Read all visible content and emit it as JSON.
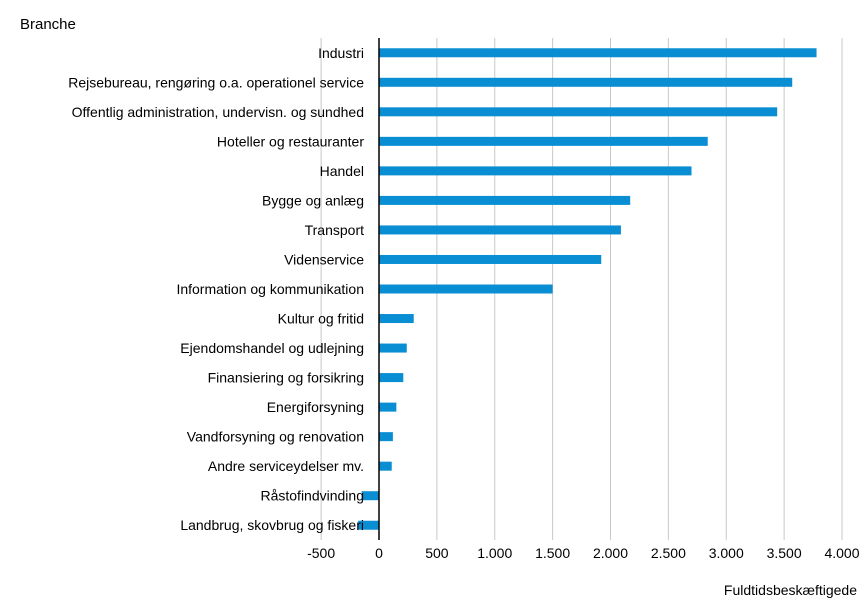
{
  "chart_data": {
    "type": "bar",
    "orientation": "horizontal",
    "title": "Branche",
    "xlabel": "Fuldtidsbeskæftigede",
    "ylabel": "",
    "xlim": [
      -500,
      4000
    ],
    "xticks": [
      "-500",
      "0",
      "500",
      "1.000",
      "1.500",
      "2.000",
      "2.500",
      "3.000",
      "3.500",
      "4.000"
    ],
    "xtick_values": [
      -500,
      0,
      500,
      1000,
      1500,
      2000,
      2500,
      3000,
      3500,
      4000
    ],
    "grid": "vertical",
    "legend": "none",
    "bar_color": "#0A8ED3",
    "categories": [
      "Industri",
      "Rejsebureau, rengøring o.a. operationel service",
      "Offentlig administration, undervisn. og sundhed",
      "Hoteller og restauranter",
      "Handel",
      "Bygge og anlæg",
      "Transport",
      "Videnservice",
      "Information og kommunikation",
      "Kultur og fritid",
      "Ejendomshandel og udlejning",
      "Finansiering og forsikring",
      "Energiforsyning",
      "Vandforsyning og renovation",
      "Andre serviceydelser mv.",
      "Råstofindvinding",
      "Landbrug, skovbrug og fiskeri"
    ],
    "values": [
      3780,
      3570,
      3440,
      2840,
      2700,
      2170,
      2090,
      1920,
      1500,
      300,
      240,
      210,
      150,
      120,
      110,
      -150,
      -180
    ]
  }
}
